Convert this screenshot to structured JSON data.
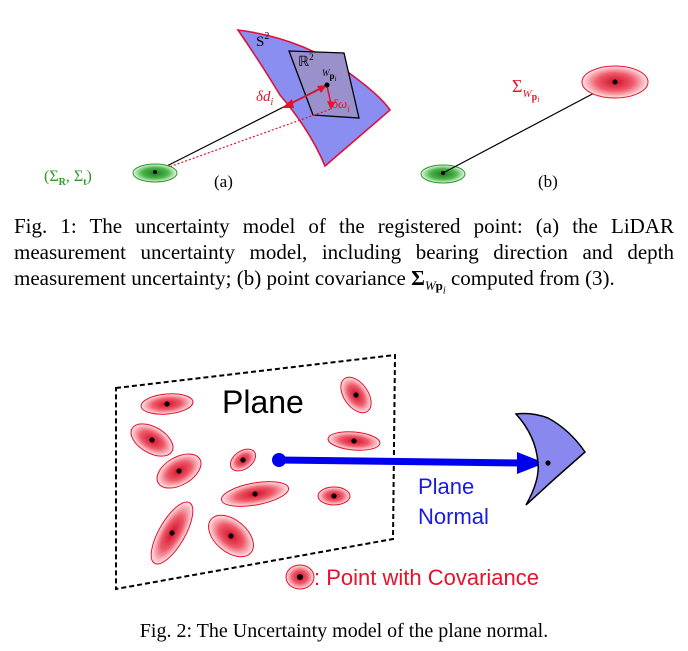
{
  "figure1": {
    "sphere_label": "S",
    "sphere_sup": "2",
    "plane_label": "ℝ",
    "plane_sup": "2",
    "point_sub_w": "W",
    "point_sub_p": "p",
    "point_sub_i": "i",
    "depth_label": "δd",
    "depth_sub": "i",
    "bearing_label": "δω",
    "bearing_sub": "i",
    "pose_label_open": "(",
    "pose_label_sigma_r": "Σ",
    "pose_label_r_sub": "R",
    "pose_label_comma": ", ",
    "pose_label_sigma_t": "Σ",
    "pose_label_t_sub": "t",
    "pose_label_close": ")",
    "label_a": "(a)",
    "label_b": "(b)",
    "cov_label_sigma": "Σ",
    "cov_label_sub_w": "W",
    "cov_label_sub_p": "p",
    "cov_label_sub_i": "i"
  },
  "caption1": {
    "prefix": "Fig. 1: The uncertainty model of the registered point: (a) the LiDAR measurement uncertainty model, including bearing direction and depth measurement uncertainty; (b) point covariance ",
    "sigma": "Σ",
    "sub_w": "W",
    "sub_p": "p",
    "sub_i": "i",
    "suffix": " computed from (3)."
  },
  "figure2": {
    "plane_title": "Plane",
    "normal_line1": "Plane",
    "normal_line2": "Normal",
    "legend_text": ": Point with Covariance"
  },
  "caption2": {
    "text": "Fig. 2: The Uncertainty model of the plane normal."
  },
  "colors": {
    "sphere_fill": "#8a8ef0",
    "sphere_stroke": "#e0103a",
    "plane_fill": "#9a90cc",
    "pose_green": "#2a9a2a",
    "covariance_red": "#e8102a",
    "arrow_blue": "#0000ee",
    "text_red": "#e8102a",
    "text_blue": "#1a1ae6",
    "cone_fill": "#8888ee"
  }
}
